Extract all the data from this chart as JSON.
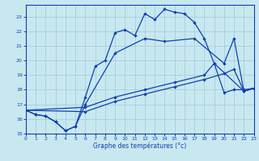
{
  "xlabel": "Graphe des températures (°c)",
  "bg_color": "#c8e8f0",
  "grid_color": "#a0c8d8",
  "line_color": "#1040b0",
  "xlim": [
    0,
    23
  ],
  "ylim": [
    15,
    23.8
  ],
  "xticks": [
    0,
    1,
    2,
    3,
    4,
    5,
    6,
    7,
    8,
    9,
    10,
    11,
    12,
    13,
    14,
    15,
    16,
    17,
    18,
    19,
    20,
    21,
    22,
    23
  ],
  "yticks": [
    15,
    16,
    17,
    18,
    19,
    20,
    21,
    22,
    23
  ],
  "line1_x": [
    0,
    1,
    2,
    3,
    4,
    5,
    6,
    7,
    8,
    9,
    10,
    11,
    12,
    13,
    14,
    15,
    16,
    17,
    18,
    19,
    20,
    21,
    22,
    23
  ],
  "line1_y": [
    16.6,
    16.3,
    16.2,
    15.8,
    15.2,
    15.5,
    17.5,
    19.6,
    20.0,
    21.9,
    22.1,
    21.7,
    23.2,
    22.8,
    23.5,
    23.3,
    23.2,
    22.6,
    21.5,
    19.8,
    17.8,
    18.0,
    18.0,
    18.1
  ],
  "line2_x": [
    0,
    1,
    2,
    3,
    4,
    5,
    6,
    9,
    12,
    14,
    17,
    20,
    21,
    22,
    23
  ],
  "line2_y": [
    16.6,
    16.3,
    16.2,
    15.8,
    15.2,
    15.5,
    17.0,
    20.5,
    21.5,
    21.3,
    21.5,
    19.8,
    21.5,
    17.9,
    18.1
  ],
  "line3_x": [
    0,
    6,
    9,
    12,
    15,
    18,
    20,
    21,
    22,
    23
  ],
  "line3_y": [
    16.6,
    16.5,
    17.2,
    17.7,
    18.2,
    18.7,
    19.1,
    19.4,
    17.9,
    18.1
  ],
  "line4_x": [
    0,
    6,
    9,
    12,
    15,
    18,
    19,
    22,
    23
  ],
  "line4_y": [
    16.6,
    16.8,
    17.5,
    18.0,
    18.5,
    19.0,
    19.8,
    17.9,
    18.1
  ]
}
